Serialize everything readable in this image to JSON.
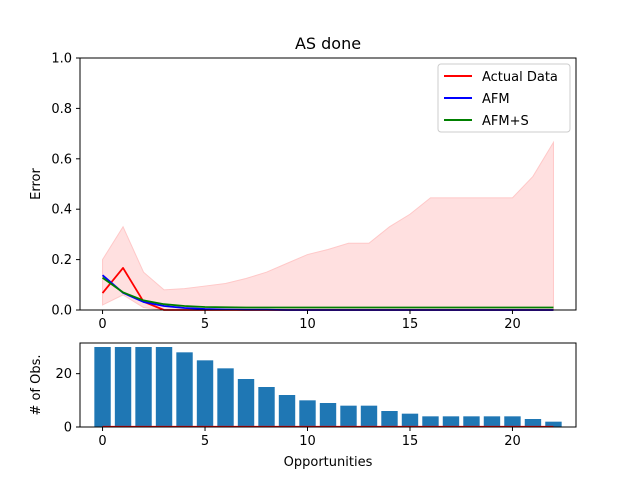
{
  "chart_data": [
    {
      "type": "line",
      "title": "AS done",
      "xlabel": "",
      "ylabel": "Error",
      "xlim": [
        -1.1,
        23.1
      ],
      "ylim": [
        0,
        1.0
      ],
      "xticks": [
        0,
        5,
        10,
        15,
        20
      ],
      "yticks": [
        0.0,
        0.2,
        0.4,
        0.6,
        0.8,
        1.0
      ],
      "ytick_labels": [
        "0.0",
        "0.2",
        "0.4",
        "0.6",
        "0.8",
        "1.0"
      ],
      "x": [
        0,
        1,
        2,
        3,
        4,
        5,
        6,
        7,
        8,
        9,
        10,
        11,
        12,
        13,
        14,
        15,
        16,
        17,
        18,
        19,
        20,
        21,
        22
      ],
      "band": {
        "color": "#ffe0e0",
        "lower": [
          0.02,
          0.06,
          0.01,
          0.0,
          0.0,
          0.0,
          0.0,
          0.0,
          0.0,
          0.0,
          0.0,
          0.0,
          0.0,
          0.0,
          0.0,
          0.0,
          0.0,
          0.0,
          0.0,
          0.0,
          0.0,
          0.0,
          0.0
        ],
        "upper": [
          0.2,
          0.33,
          0.15,
          0.08,
          0.085,
          0.095,
          0.105,
          0.125,
          0.15,
          0.185,
          0.22,
          0.24,
          0.265,
          0.265,
          0.33,
          0.38,
          0.445,
          0.445,
          0.445,
          0.445,
          0.445,
          0.53,
          0.665
        ]
      },
      "series": [
        {
          "name": "Actual Data",
          "color": "#ff0000",
          "values": [
            0.067,
            0.167,
            0.033,
            0.0,
            0.0,
            0.0,
            0.0,
            0.0,
            0.0,
            0.0,
            0.0,
            0.0,
            0.0,
            0.0,
            0.0,
            0.0,
            0.0,
            0.0,
            0.0,
            0.0,
            0.0,
            0.0,
            0.0
          ]
        },
        {
          "name": "AFM",
          "color": "#0000ff",
          "values": [
            0.138,
            0.068,
            0.032,
            0.016,
            0.008,
            0.004,
            0.002,
            0.001,
            0.001,
            0.0,
            0.0,
            0.0,
            0.0,
            0.0,
            0.0,
            0.0,
            0.0,
            0.0,
            0.0,
            0.0,
            0.0,
            0.0,
            0.0
          ]
        },
        {
          "name": "AFM+S",
          "color": "#008000",
          "values": [
            0.128,
            0.07,
            0.038,
            0.023,
            0.016,
            0.012,
            0.011,
            0.01,
            0.01,
            0.01,
            0.01,
            0.01,
            0.01,
            0.01,
            0.01,
            0.01,
            0.01,
            0.01,
            0.01,
            0.01,
            0.01,
            0.01,
            0.01
          ]
        }
      ],
      "legend": "top-right",
      "grid": false
    },
    {
      "type": "bar",
      "title": "",
      "xlabel": "Opportunities",
      "ylabel": "# of Obs.",
      "xlim": [
        -1.1,
        23.1
      ],
      "ylim": [
        0,
        31.5
      ],
      "xticks": [
        0,
        5,
        10,
        15,
        20
      ],
      "yticks": [
        0,
        20
      ],
      "x": [
        0,
        1,
        2,
        3,
        4,
        5,
        6,
        7,
        8,
        9,
        10,
        11,
        12,
        13,
        14,
        15,
        16,
        17,
        18,
        19,
        20,
        21,
        22
      ],
      "values": [
        30,
        30,
        30,
        30,
        28,
        25,
        22,
        18,
        15,
        12,
        10,
        9,
        8,
        8,
        6,
        5,
        4,
        4,
        4,
        4,
        4,
        3,
        2
      ],
      "bar_color": "#1f77b4",
      "baseline_color": "#ff0000",
      "grid": false
    }
  ]
}
